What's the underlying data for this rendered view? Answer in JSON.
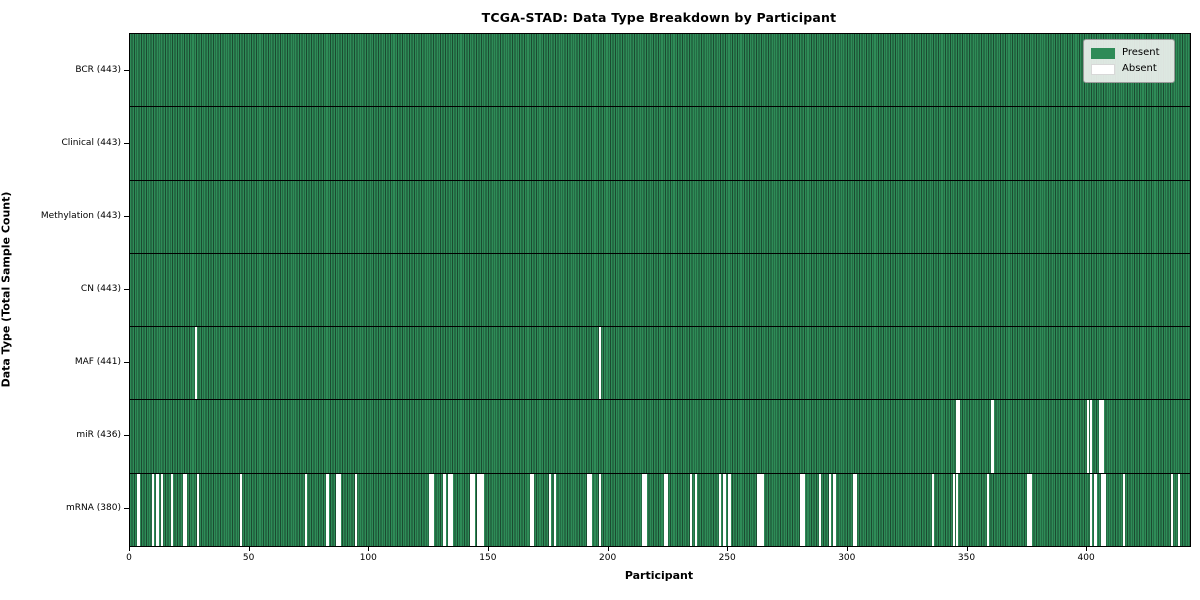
{
  "title": "TCGA-STAD: Data Type Breakdown by Participant",
  "chart_data": {
    "type": "heatmap",
    "title": "TCGA-STAD: Data Type Breakdown by Participant",
    "xlabel": "Participant",
    "ylabel": "Data Type (Total Sample Count)",
    "x_range": [
      0,
      443
    ],
    "n_participants": 443,
    "x_ticks": [
      0,
      50,
      100,
      150,
      200,
      250,
      300,
      350,
      400
    ],
    "grid": "row-separators",
    "colors": {
      "present": "#2e8b57",
      "bar_edge": "#1b4b31",
      "absent": "#ffffff",
      "row_separator": "#000000"
    },
    "legend": {
      "position": "upper-right",
      "entries": [
        {
          "label": "Present",
          "color": "#2e8b57"
        },
        {
          "label": "Absent",
          "color": "#ffffff"
        }
      ]
    },
    "rows": [
      {
        "name": "bcr",
        "label": "BCR (443)",
        "data_type": "BCR",
        "present_count": 443,
        "absent_participants": []
      },
      {
        "name": "clinical",
        "label": "Clinical (443)",
        "data_type": "Clinical",
        "present_count": 443,
        "absent_participants": []
      },
      {
        "name": "methylation",
        "label": "Methylation (443)",
        "data_type": "Methylation",
        "present_count": 443,
        "absent_participants": []
      },
      {
        "name": "cn",
        "label": "CN (443)",
        "data_type": "CN",
        "present_count": 443,
        "absent_participants": []
      },
      {
        "name": "maf",
        "label": "MAF (441)",
        "data_type": "MAF",
        "present_count": 441,
        "absent_participants": [
          27,
          196
        ]
      },
      {
        "name": "mir",
        "label": "miR (436)",
        "data_type": "miR",
        "present_count": 436,
        "absent_participants": [
          345,
          346,
          360,
          400,
          401,
          405,
          406
        ]
      },
      {
        "name": "mrna",
        "label": "mRNA (380)",
        "data_type": "mRNA",
        "present_count": 380,
        "absent_participants": [
          3,
          9,
          11,
          13,
          17,
          22,
          23,
          28,
          46,
          73,
          82,
          86,
          87,
          94,
          125,
          126,
          131,
          133,
          134,
          142,
          143,
          145,
          146,
          147,
          167,
          168,
          175,
          177,
          191,
          192,
          196,
          214,
          215,
          223,
          224,
          234,
          236,
          246,
          248,
          250,
          262,
          263,
          264,
          280,
          281,
          288,
          292,
          294,
          302,
          303,
          335,
          344,
          345,
          358,
          375,
          376,
          401,
          403,
          406,
          407,
          415,
          435,
          438
        ]
      }
    ]
  }
}
